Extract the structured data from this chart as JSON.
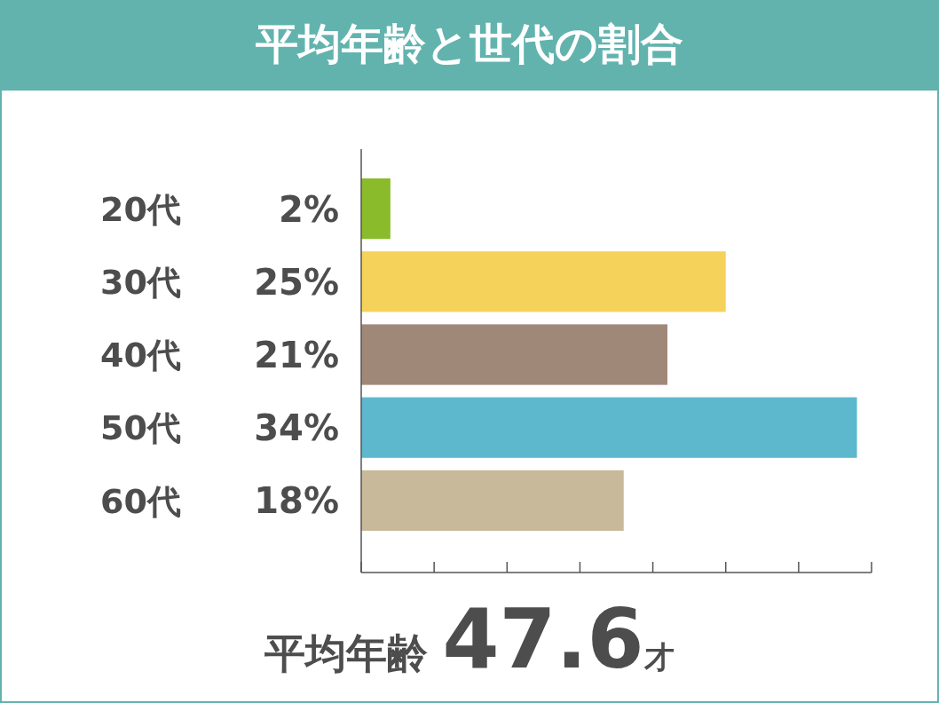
{
  "chart_data": {
    "type": "bar",
    "orientation": "horizontal",
    "title": "平均年齢と世代の割合",
    "categories": [
      "20代",
      "30代",
      "40代",
      "50代",
      "60代"
    ],
    "values": [
      2,
      25,
      21,
      34,
      18
    ],
    "value_labels": [
      "2%",
      "25%",
      "21%",
      "34%",
      "18%"
    ],
    "colors": [
      "#8abb2b",
      "#f5d35a",
      "#a08878",
      "#5db8ce",
      "#c8b99a"
    ],
    "xlim": [
      0,
      35
    ],
    "xticks": [
      {
        "value": 0,
        "label": null
      },
      {
        "value": 5,
        "label": null
      },
      {
        "value": 10,
        "label": null
      },
      {
        "value": 15,
        "label": null
      },
      {
        "value": 20,
        "label": null
      },
      {
        "value": 25,
        "label": null
      },
      {
        "value": 30,
        "label": null
      },
      {
        "value": 35,
        "label": null
      }
    ],
    "annotations": [
      "平均年齢 47.6才"
    ]
  }
}
